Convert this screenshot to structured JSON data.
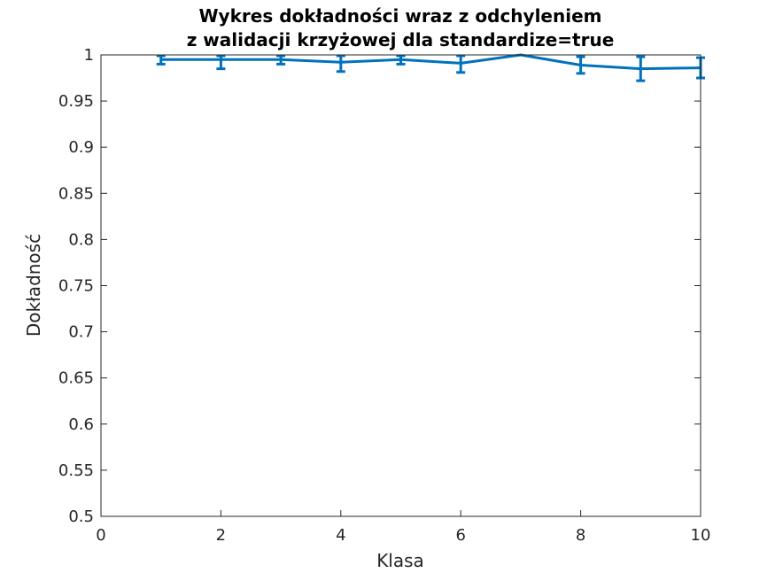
{
  "chart_data": {
    "type": "line",
    "title_lines": [
      "Wykres dokładności wraz z odchyleniem",
      "z walidacji krzyżowej dla standardize=true"
    ],
    "xlabel": "Klasa",
    "ylabel": "Dokładność",
    "xlim": [
      0,
      10
    ],
    "ylim": [
      0.5,
      1
    ],
    "xticks": [
      0,
      2,
      4,
      6,
      8,
      10
    ],
    "xtick_labels": [
      "0",
      "2",
      "4",
      "6",
      "8",
      "10"
    ],
    "yticks": [
      0.5,
      0.55,
      0.6,
      0.65,
      0.7,
      0.75,
      0.8,
      0.85,
      0.9,
      0.95,
      1
    ],
    "ytick_labels": [
      "0.5",
      "0.55",
      "0.6",
      "0.65",
      "0.7",
      "0.75",
      "0.8",
      "0.85",
      "0.9",
      "0.95",
      "1"
    ],
    "grid": false,
    "series": [
      {
        "color": "#0072BD",
        "x": [
          1,
          2,
          3,
          4,
          5,
          6,
          7,
          8,
          9,
          10
        ],
        "y": [
          0.995,
          0.995,
          0.995,
          0.992,
          0.995,
          0.991,
          1.0,
          0.989,
          0.985,
          0.986
        ],
        "err": [
          0.005,
          0.01,
          0.005,
          0.01,
          0.005,
          0.01,
          0.0,
          0.009,
          0.013,
          0.011
        ]
      }
    ]
  }
}
